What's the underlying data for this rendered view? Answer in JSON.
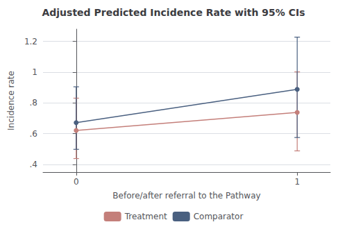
{
  "chart_data": {
    "type": "line",
    "title": "Adjusted Predicted Incidence Rate with 95% CIs",
    "xlabel": "Before/after referral to the Pathway",
    "ylabel": "Incidence rate",
    "x": [
      0,
      1
    ],
    "xlim": [
      -0.15,
      1.15
    ],
    "xticks": [
      0,
      1
    ],
    "ylim": [
      0.35,
      1.28
    ],
    "yticks": [
      {
        "value": 0.4,
        "label": ".4"
      },
      {
        "value": 0.6,
        "label": ".6"
      },
      {
        "value": 0.8,
        "label": ".8"
      },
      1,
      1.2
    ],
    "grid": true,
    "marker": "circle",
    "legend": "bottom",
    "series": [
      {
        "name": "Treatment",
        "color": "#c47f7a",
        "values": [
          0.621,
          0.738
        ],
        "ci_low": [
          0.438,
          0.488
        ],
        "ci_high": [
          0.831,
          1.002
        ]
      },
      {
        "name": "Comparator",
        "color": "#4a6080",
        "values": [
          0.672,
          0.888
        ],
        "ci_low": [
          0.498,
          0.575
        ],
        "ci_high": [
          0.905,
          1.228
        ]
      }
    ]
  }
}
